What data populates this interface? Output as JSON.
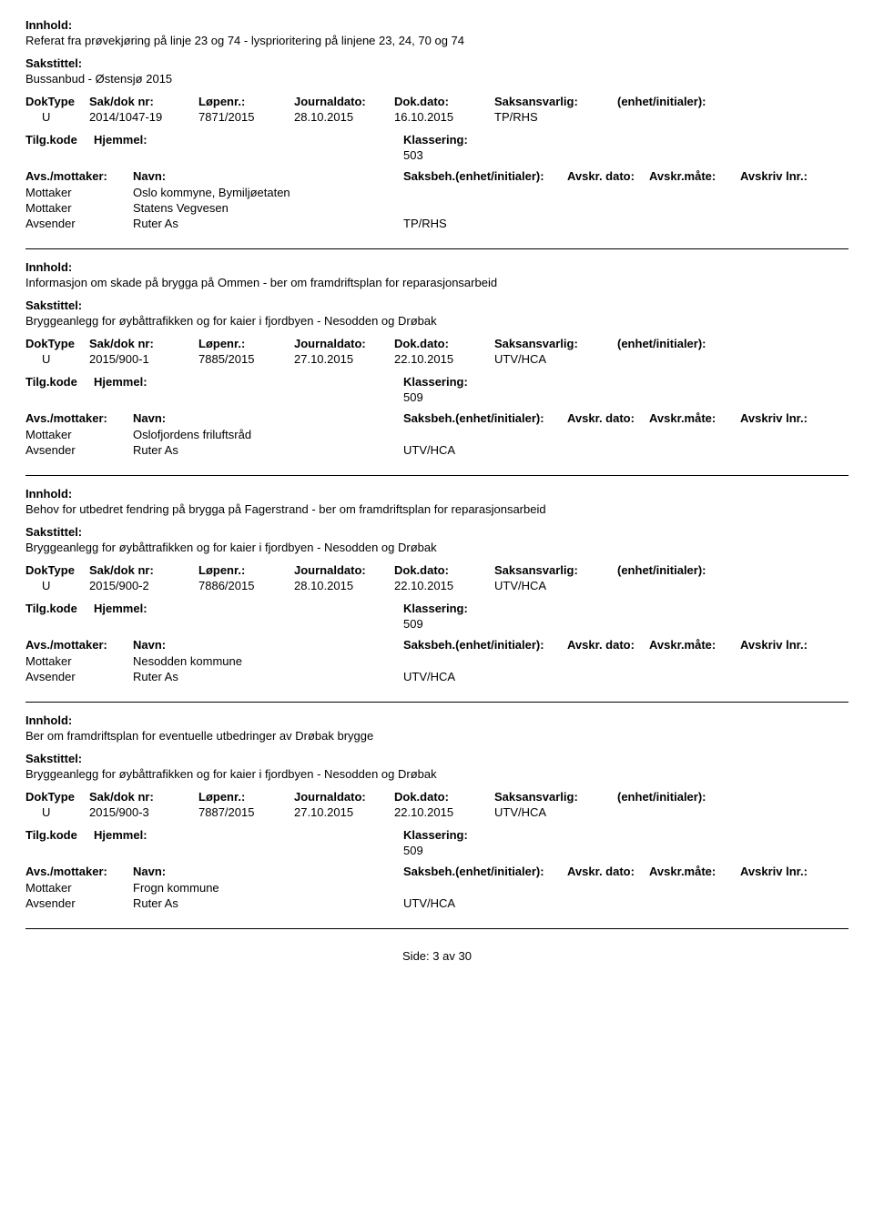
{
  "labels": {
    "innhold": "Innhold:",
    "sakstittel": "Sakstittel:",
    "doktype": "DokType",
    "sakdok": "Sak/dok nr:",
    "lopenr": "Løpenr.:",
    "journaldato": "Journaldato:",
    "dokdato": "Dok.dato:",
    "saksansvarlig": "Saksansvarlig:",
    "enhet": "(enhet/initialer):",
    "tilgkode": "Tilg.kode",
    "hjemmel": "Hjemmel:",
    "klassering": "Klassering:",
    "avsmottaker": "Avs./mottaker:",
    "navn": "Navn:",
    "saksbeh": "Saksbeh.(enhet/initialer):",
    "avskrdato": "Avskr. dato:",
    "avskrmate": "Avskr.måte:",
    "avskrivlnr": "Avskriv lnr.:",
    "mottaker": "Mottaker",
    "avsender": "Avsender"
  },
  "records": [
    {
      "innhold": "Referat fra prøvekjøring på linje 23 og 74 - lysprioritering på linjene 23, 24, 70 og 74",
      "sakstittel": "Bussanbud - Østensjø 2015",
      "doktype": "U",
      "sakdok": "2014/1047-19",
      "lopenr": "7871/2015",
      "journaldato": "28.10.2015",
      "dokdato": "16.10.2015",
      "saksansvarlig": "TP/RHS",
      "enhet": "",
      "klassering": "503",
      "parties": [
        {
          "role": "Mottaker",
          "navn": "Oslo kommyne, Bymiljøetaten",
          "saksbeh": ""
        },
        {
          "role": "Mottaker",
          "navn": "Statens Vegvesen",
          "saksbeh": ""
        },
        {
          "role": "Avsender",
          "navn": "Ruter As",
          "saksbeh": "TP/RHS"
        }
      ]
    },
    {
      "innhold": "Informasjon om skade på brygga på Ommen - ber om framdriftsplan for reparasjonsarbeid",
      "sakstittel": "Bryggeanlegg for øybåttrafikken og for kaier i fjordbyen - Nesodden og Drøbak",
      "doktype": "U",
      "sakdok": "2015/900-1",
      "lopenr": "7885/2015",
      "journaldato": "27.10.2015",
      "dokdato": "22.10.2015",
      "saksansvarlig": "UTV/HCA",
      "enhet": "",
      "klassering": "509",
      "parties": [
        {
          "role": "Mottaker",
          "navn": "Oslofjordens friluftsråd",
          "saksbeh": ""
        },
        {
          "role": "Avsender",
          "navn": "Ruter As",
          "saksbeh": "UTV/HCA"
        }
      ]
    },
    {
      "innhold": "Behov for utbedret fendring på brygga på Fagerstrand - ber om framdriftsplan for reparasjonsarbeid",
      "sakstittel": "Bryggeanlegg for øybåttrafikken og for kaier i fjordbyen - Nesodden og Drøbak",
      "doktype": "U",
      "sakdok": "2015/900-2",
      "lopenr": "7886/2015",
      "journaldato": "28.10.2015",
      "dokdato": "22.10.2015",
      "saksansvarlig": "UTV/HCA",
      "enhet": "",
      "klassering": "509",
      "parties": [
        {
          "role": "Mottaker",
          "navn": "Nesodden kommune",
          "saksbeh": ""
        },
        {
          "role": "Avsender",
          "navn": "Ruter As",
          "saksbeh": "UTV/HCA"
        }
      ]
    },
    {
      "innhold": "Ber om framdriftsplan for eventuelle utbedringer av Drøbak brygge",
      "sakstittel": "Bryggeanlegg for øybåttrafikken og for kaier i fjordbyen - Nesodden og Drøbak",
      "doktype": "U",
      "sakdok": "2015/900-3",
      "lopenr": "7887/2015",
      "journaldato": "27.10.2015",
      "dokdato": "22.10.2015",
      "saksansvarlig": "UTV/HCA",
      "enhet": "",
      "klassering": "509",
      "parties": [
        {
          "role": "Mottaker",
          "navn": "Frogn kommune",
          "saksbeh": ""
        },
        {
          "role": "Avsender",
          "navn": "Ruter As",
          "saksbeh": "UTV/HCA"
        }
      ]
    }
  ],
  "footer": {
    "side_label": "Side:",
    "page": "3",
    "av": "av",
    "total": "30"
  },
  "colors": {
    "text": "#000000",
    "background": "#ffffff",
    "divider": "#000000"
  },
  "typography": {
    "font_family": "Verdana, Arial, sans-serif",
    "body_fontsize": 13,
    "bold_weight": "bold"
  }
}
